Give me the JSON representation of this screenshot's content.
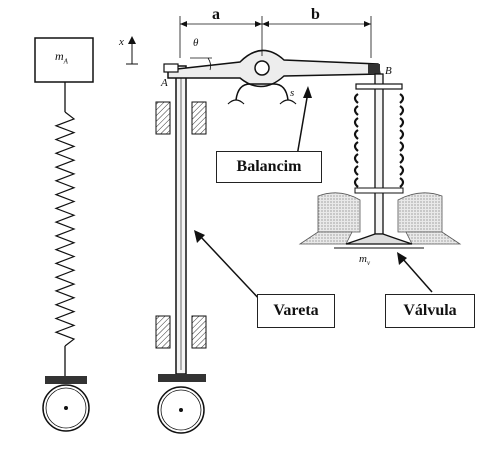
{
  "callouts": {
    "balancim": "Balancim",
    "vareta": "Vareta",
    "valvula": "Válvula"
  },
  "dimensions": {
    "a": "a",
    "b": "b"
  },
  "points": {
    "A": "A",
    "B": "B",
    "theta": "θ",
    "s": "s"
  },
  "mass_labels": {
    "mA_main": "m",
    "mA_sub": "A",
    "mv_main": "m",
    "mv_sub": "v"
  },
  "axis_label": "x"
}
